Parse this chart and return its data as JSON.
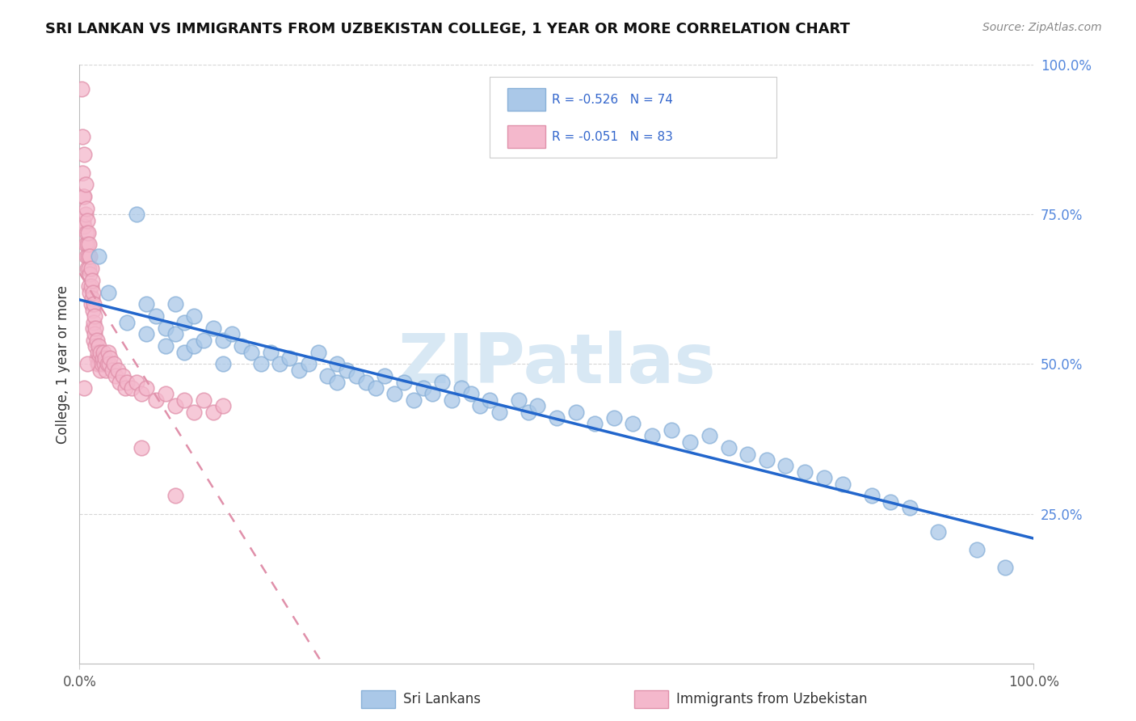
{
  "title": "SRI LANKAN VS IMMIGRANTS FROM UZBEKISTAN COLLEGE, 1 YEAR OR MORE CORRELATION CHART",
  "source": "Source: ZipAtlas.com",
  "ylabel": "College, 1 year or more",
  "series": [
    {
      "name": "Sri Lankans",
      "dot_color": "#aac8e8",
      "dot_edge_color": "#88b0d8",
      "line_color": "#2266cc",
      "line_style": "solid",
      "R": -0.526,
      "N": 74,
      "legend_patch_color": "#aac8e8",
      "legend_patch_edge": "#88b0d8"
    },
    {
      "name": "Immigrants from Uzbekistan",
      "dot_color": "#f4b8cc",
      "dot_edge_color": "#e090aa",
      "line_color": "#e090aa",
      "line_style": "dashed",
      "R": -0.051,
      "N": 83,
      "legend_patch_color": "#f4b8cc",
      "legend_patch_edge": "#e090aa"
    }
  ],
  "background_color": "#ffffff",
  "grid_color": "#cccccc",
  "watermark_text": "ZIPatlas",
  "watermark_color": "#d8e8f4",
  "xlim": [
    0.0,
    1.0
  ],
  "ylim": [
    0.0,
    1.0
  ],
  "right_ytick_positions": [
    0.25,
    0.5,
    0.75,
    1.0
  ],
  "right_ytick_labels": [
    "25.0%",
    "50.0%",
    "75.0%",
    "100.0%"
  ],
  "xtick_positions": [
    0.0,
    1.0
  ],
  "xtick_labels": [
    "0.0%",
    "100.0%"
  ],
  "sl_x": [
    0.02,
    0.03,
    0.05,
    0.06,
    0.07,
    0.07,
    0.08,
    0.09,
    0.09,
    0.1,
    0.1,
    0.11,
    0.11,
    0.12,
    0.12,
    0.13,
    0.14,
    0.15,
    0.15,
    0.16,
    0.17,
    0.18,
    0.19,
    0.2,
    0.21,
    0.22,
    0.23,
    0.24,
    0.25,
    0.26,
    0.27,
    0.27,
    0.28,
    0.29,
    0.3,
    0.31,
    0.32,
    0.33,
    0.34,
    0.35,
    0.36,
    0.37,
    0.38,
    0.39,
    0.4,
    0.41,
    0.42,
    0.43,
    0.44,
    0.46,
    0.47,
    0.48,
    0.5,
    0.52,
    0.54,
    0.56,
    0.58,
    0.6,
    0.62,
    0.64,
    0.66,
    0.68,
    0.7,
    0.72,
    0.74,
    0.76,
    0.78,
    0.8,
    0.83,
    0.85,
    0.87,
    0.9,
    0.94,
    0.97
  ],
  "sl_y": [
    0.68,
    0.62,
    0.57,
    0.75,
    0.6,
    0.55,
    0.58,
    0.56,
    0.53,
    0.6,
    0.55,
    0.57,
    0.52,
    0.58,
    0.53,
    0.54,
    0.56,
    0.54,
    0.5,
    0.55,
    0.53,
    0.52,
    0.5,
    0.52,
    0.5,
    0.51,
    0.49,
    0.5,
    0.52,
    0.48,
    0.5,
    0.47,
    0.49,
    0.48,
    0.47,
    0.46,
    0.48,
    0.45,
    0.47,
    0.44,
    0.46,
    0.45,
    0.47,
    0.44,
    0.46,
    0.45,
    0.43,
    0.44,
    0.42,
    0.44,
    0.42,
    0.43,
    0.41,
    0.42,
    0.4,
    0.41,
    0.4,
    0.38,
    0.39,
    0.37,
    0.38,
    0.36,
    0.35,
    0.34,
    0.33,
    0.32,
    0.31,
    0.3,
    0.28,
    0.27,
    0.26,
    0.22,
    0.19,
    0.16
  ],
  "uz_x": [
    0.002,
    0.003,
    0.003,
    0.004,
    0.004,
    0.005,
    0.005,
    0.005,
    0.006,
    0.006,
    0.006,
    0.007,
    0.007,
    0.007,
    0.008,
    0.008,
    0.008,
    0.009,
    0.009,
    0.01,
    0.01,
    0.01,
    0.011,
    0.011,
    0.011,
    0.012,
    0.012,
    0.012,
    0.013,
    0.013,
    0.014,
    0.014,
    0.014,
    0.015,
    0.015,
    0.015,
    0.016,
    0.016,
    0.017,
    0.017,
    0.018,
    0.018,
    0.019,
    0.019,
    0.02,
    0.02,
    0.021,
    0.022,
    0.022,
    0.023,
    0.024,
    0.025,
    0.026,
    0.027,
    0.028,
    0.029,
    0.03,
    0.031,
    0.032,
    0.034,
    0.036,
    0.038,
    0.04,
    0.042,
    0.045,
    0.048,
    0.05,
    0.055,
    0.06,
    0.065,
    0.07,
    0.08,
    0.09,
    0.1,
    0.11,
    0.12,
    0.13,
    0.14,
    0.15,
    0.1,
    0.005,
    0.008,
    0.065
  ],
  "uz_y": [
    0.96,
    0.88,
    0.82,
    0.78,
    0.74,
    0.85,
    0.78,
    0.73,
    0.8,
    0.75,
    0.7,
    0.76,
    0.72,
    0.68,
    0.74,
    0.7,
    0.66,
    0.72,
    0.68,
    0.7,
    0.66,
    0.63,
    0.68,
    0.65,
    0.62,
    0.66,
    0.63,
    0.6,
    0.64,
    0.61,
    0.62,
    0.59,
    0.56,
    0.6,
    0.57,
    0.54,
    0.58,
    0.55,
    0.56,
    0.53,
    0.54,
    0.51,
    0.52,
    0.5,
    0.53,
    0.5,
    0.51,
    0.52,
    0.49,
    0.5,
    0.51,
    0.52,
    0.5,
    0.51,
    0.49,
    0.5,
    0.52,
    0.5,
    0.51,
    0.49,
    0.5,
    0.48,
    0.49,
    0.47,
    0.48,
    0.46,
    0.47,
    0.46,
    0.47,
    0.45,
    0.46,
    0.44,
    0.45,
    0.43,
    0.44,
    0.42,
    0.44,
    0.42,
    0.43,
    0.28,
    0.46,
    0.5,
    0.36
  ]
}
